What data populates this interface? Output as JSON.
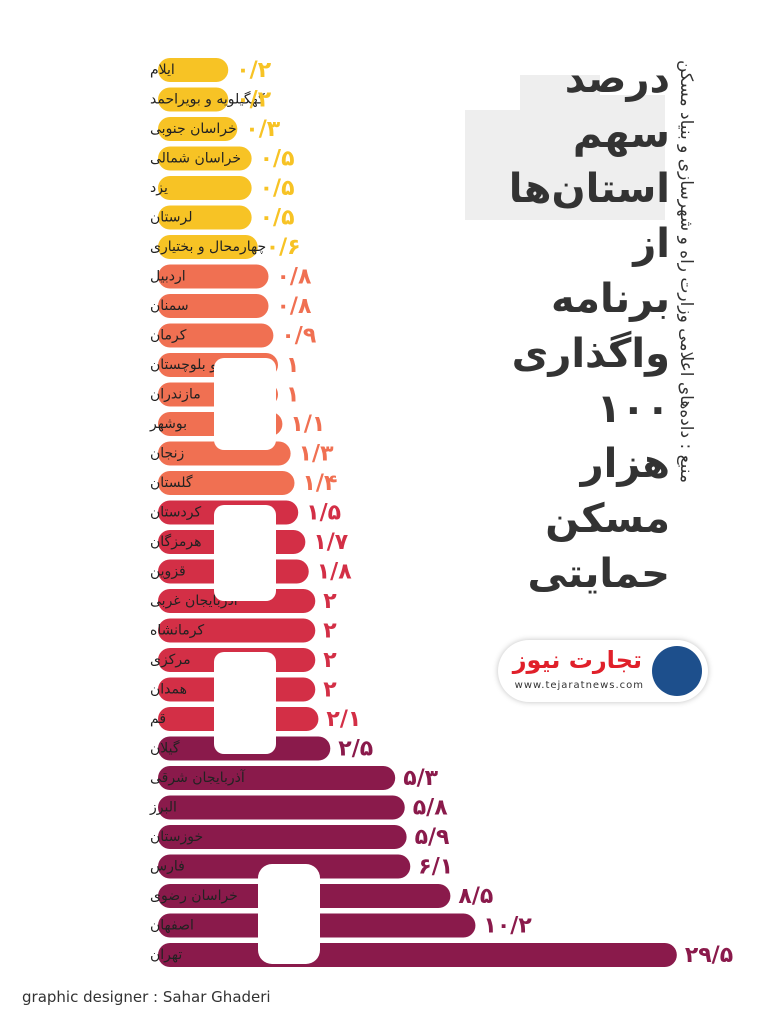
{
  "chart_data": {
    "type": "bar",
    "title": "درصد سهم استان‌ها از برنامه واگذاری ۱۰۰ هزار مسکن حمایتی",
    "source": "منبع : داده‌های اعلامی وزارت راه و شهرسازی و بنیاد مسکن",
    "brand": "تجارت نیوز",
    "brand_url": "www.tejaratnews.com",
    "credit": "graphic designer : Sahar Ghaderi",
    "categories": [
      "ایلام",
      "کهگیلویه و بویراحمد",
      "خراسان جنوبی",
      "خراسان شمالی",
      "یزد",
      "لرستان",
      "چهارمحال و بختیاری",
      "اردبیل",
      "سمنان",
      "کرمان",
      "سیستان و بلوچستان",
      "مازندران",
      "بوشهر",
      "زنجان",
      "گلستان",
      "کردستان",
      "هرمزگان",
      "قزوین",
      "آذربایجان غربی",
      "کرمانشاه",
      "مرکزی",
      "همدان",
      "قم",
      "گیلان",
      "آذربایجان شرقی",
      "البرز",
      "خوزستان",
      "فارس",
      "خراسان رضوی",
      "اصفهان",
      "تهران"
    ],
    "values": [
      0.2,
      0.2,
      0.3,
      0.5,
      0.5,
      0.5,
      0.6,
      0.8,
      0.8,
      0.9,
      1,
      1,
      1.1,
      1.3,
      1.4,
      1.5,
      1.7,
      1.8,
      2,
      2,
      2,
      2,
      2.1,
      2.5,
      5.3,
      5.8,
      5.9,
      6.1,
      8.5,
      10.2,
      29.5
    ],
    "value_labels": [
      "۰/۲",
      "۰/۲",
      "۰/۳",
      "۰/۵",
      "۰/۵",
      "۰/۵",
      "۰/۶",
      "۰/۸",
      "۰/۸",
      "۰/۹",
      "۱",
      "۱",
      "۱/۱",
      "۱/۳",
      "۱/۴",
      "۱/۵",
      "۱/۷",
      "۱/۸",
      "۲",
      "۲",
      "۲",
      "۲",
      "۲/۱",
      "۲/۵",
      "۵/۳",
      "۵/۸",
      "۵/۹",
      "۶/۱",
      "۸/۵",
      "۱۰/۲",
      "۲۹/۵"
    ],
    "colors": [
      "#f7c325",
      "#f7c325",
      "#f7c325",
      "#f7c325",
      "#f7c325",
      "#f7c325",
      "#f7c325",
      "#f07052",
      "#f07052",
      "#f07052",
      "#f07052",
      "#f07052",
      "#f07052",
      "#f07052",
      "#f07052",
      "#d32f46",
      "#d32f46",
      "#d32f46",
      "#d32f46",
      "#d32f46",
      "#d32f46",
      "#d32f46",
      "#d32f46",
      "#8a1a4b",
      "#8a1a4b",
      "#8a1a4b",
      "#8a1a4b",
      "#8a1a4b",
      "#8a1a4b",
      "#8a1a4b",
      "#8a1a4b"
    ]
  }
}
